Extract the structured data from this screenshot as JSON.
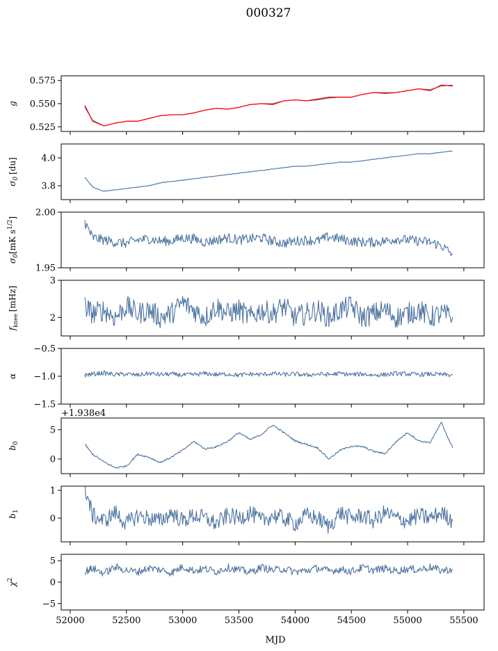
{
  "figure_title": "000327",
  "chart_data": [
    {
      "type": "line",
      "key": "g",
      "ylabel": "g",
      "ylim": [
        0.52,
        0.58
      ],
      "yticks": [
        0.525,
        0.55,
        0.575
      ],
      "ytick_labels": [
        "0.525",
        "0.550",
        "0.575"
      ],
      "series": [
        {
          "name": "g",
          "color": "#4c72a0",
          "x": [
            52130,
            52200,
            52300,
            52400,
            52500,
            52600,
            52700,
            52800,
            52900,
            53000,
            53100,
            53200,
            53300,
            53400,
            53500,
            53600,
            53700,
            53800,
            53900,
            54000,
            54100,
            54200,
            54300,
            54400,
            54500,
            54600,
            54700,
            54800,
            54900,
            55000,
            55100,
            55200,
            55300,
            55400
          ],
          "y": [
            0.546,
            0.532,
            0.526,
            0.529,
            0.531,
            0.531,
            0.534,
            0.537,
            0.538,
            0.538,
            0.54,
            0.543,
            0.545,
            0.544,
            0.546,
            0.549,
            0.55,
            0.55,
            0.553,
            0.554,
            0.553,
            0.554,
            0.556,
            0.557,
            0.557,
            0.56,
            0.562,
            0.562,
            0.562,
            0.564,
            0.566,
            0.565,
            0.569,
            0.57
          ]
        },
        {
          "name": "g (red)",
          "color": "#ff0000",
          "x": [
            52130,
            52200,
            52300,
            52400,
            52500,
            52600,
            52700,
            52800,
            52900,
            53000,
            53100,
            53200,
            53300,
            53400,
            53500,
            53600,
            53700,
            53800,
            53900,
            54000,
            54100,
            54200,
            54300,
            54400,
            54500,
            54600,
            54700,
            54800,
            54900,
            55000,
            55100,
            55200,
            55300,
            55400
          ],
          "y": [
            0.548,
            0.531,
            0.526,
            0.529,
            0.531,
            0.531,
            0.534,
            0.537,
            0.538,
            0.538,
            0.54,
            0.543,
            0.545,
            0.544,
            0.546,
            0.549,
            0.55,
            0.549,
            0.553,
            0.554,
            0.553,
            0.555,
            0.557,
            0.557,
            0.557,
            0.56,
            0.562,
            0.561,
            0.562,
            0.564,
            0.566,
            0.564,
            0.57,
            0.569
          ]
        }
      ]
    },
    {
      "type": "line",
      "key": "sigma0",
      "ylabel": "σ0 [du]",
      "ylim": [
        3.7,
        4.1
      ],
      "yticks": [
        3.8,
        4.0
      ],
      "ytick_labels": [
        "3.8",
        "4.0"
      ],
      "series": [
        {
          "name": "σ0 [du]",
          "color": "#4c72a0",
          "x": [
            52130,
            52200,
            52300,
            52400,
            52500,
            52600,
            52700,
            52800,
            52900,
            53000,
            53100,
            53200,
            53300,
            53400,
            53500,
            53600,
            53700,
            53800,
            53900,
            54000,
            54100,
            54200,
            54300,
            54400,
            54500,
            54600,
            54700,
            54800,
            54900,
            55000,
            55100,
            55200,
            55300,
            55400
          ],
          "y": [
            3.86,
            3.79,
            3.76,
            3.77,
            3.78,
            3.79,
            3.8,
            3.82,
            3.83,
            3.84,
            3.85,
            3.86,
            3.87,
            3.88,
            3.89,
            3.9,
            3.91,
            3.92,
            3.93,
            3.94,
            3.94,
            3.95,
            3.96,
            3.97,
            3.97,
            3.98,
            3.99,
            4.0,
            4.01,
            4.02,
            4.03,
            4.03,
            4.04,
            4.05
          ]
        }
      ]
    },
    {
      "type": "line",
      "key": "sigma_mk",
      "ylabel": "σ0[mK s^1/2]",
      "ylim": [
        1.95,
        2.0
      ],
      "yticks": [
        1.95,
        2.0
      ],
      "ytick_labels": [
        "1.95",
        "2.00"
      ],
      "series": [
        {
          "name": "σ0 [mK s^1/2]",
          "color": "#4c72a0",
          "x": [
            52130,
            52200,
            52300,
            52400,
            52500,
            52600,
            52700,
            52800,
            52900,
            53000,
            53100,
            53200,
            53300,
            53400,
            53500,
            53600,
            53700,
            53800,
            53900,
            54000,
            54100,
            54200,
            54300,
            54400,
            54500,
            54600,
            54700,
            54800,
            54900,
            55000,
            55100,
            55200,
            55300,
            55400
          ],
          "y": [
            1.991,
            1.977,
            1.975,
            1.973,
            1.972,
            1.975,
            1.976,
            1.974,
            1.974,
            1.977,
            1.976,
            1.973,
            1.975,
            1.977,
            1.975,
            1.976,
            1.977,
            1.974,
            1.972,
            1.974,
            1.975,
            1.974,
            1.978,
            1.976,
            1.974,
            1.973,
            1.973,
            1.974,
            1.976,
            1.975,
            1.974,
            1.973,
            1.97,
            1.962
          ]
        }
      ]
    },
    {
      "type": "line",
      "key": "fknee",
      "ylabel": "fknee [mHz]",
      "ylim": [
        1.5,
        3.0
      ],
      "yticks": [
        2,
        3
      ],
      "ytick_labels": [
        "2",
        "3"
      ],
      "series": [
        {
          "name": "fknee [mHz]",
          "color": "#4c72a0",
          "x": [
            52130,
            52200,
            52300,
            52400,
            52500,
            52600,
            52700,
            52800,
            52900,
            53000,
            53100,
            53200,
            53300,
            53400,
            53500,
            53600,
            53700,
            53800,
            53900,
            54000,
            54100,
            54200,
            54300,
            54400,
            54500,
            54600,
            54700,
            54800,
            54900,
            55000,
            55100,
            55200,
            55300,
            55400
          ],
          "y": [
            2.3,
            2.1,
            2.2,
            2.0,
            2.3,
            2.1,
            2.2,
            2.0,
            2.1,
            2.4,
            2.2,
            2.0,
            2.3,
            2.1,
            2.2,
            2.0,
            2.2,
            2.1,
            2.3,
            2.0,
            2.1,
            2.2,
            2.0,
            2.2,
            2.3,
            2.0,
            2.1,
            2.2,
            2.0,
            2.1,
            2.2,
            2.0,
            2.1,
            2.0
          ]
        }
      ]
    },
    {
      "type": "line",
      "key": "alpha",
      "ylabel": "α",
      "ylim": [
        -1.5,
        -0.5
      ],
      "yticks": [
        -1.5,
        -1.0,
        -0.5
      ],
      "ytick_labels": [
        "−1.5",
        "−1.0",
        "−0.5"
      ],
      "series": [
        {
          "name": "α",
          "color": "#4c72a0",
          "x": [
            52130,
            52200,
            52300,
            52400,
            52500,
            52600,
            52700,
            52800,
            52900,
            53000,
            53100,
            53200,
            53300,
            53400,
            53500,
            53600,
            53700,
            53800,
            53900,
            54000,
            54100,
            54200,
            54300,
            54400,
            54500,
            54600,
            54700,
            54800,
            54900,
            55000,
            55100,
            55200,
            55300,
            55400
          ],
          "y": [
            -0.98,
            -0.96,
            -0.94,
            -0.97,
            -0.96,
            -0.98,
            -0.95,
            -0.97,
            -0.96,
            -0.98,
            -0.97,
            -0.95,
            -0.97,
            -0.96,
            -0.98,
            -0.96,
            -0.97,
            -0.95,
            -0.97,
            -0.96,
            -0.98,
            -0.96,
            -0.97,
            -0.95,
            -0.97,
            -0.96,
            -0.98,
            -0.97,
            -0.95,
            -0.96,
            -0.97,
            -0.96,
            -0.97,
            -0.98
          ]
        }
      ]
    },
    {
      "type": "line",
      "key": "b0",
      "ylabel": "b0",
      "offset_text": "+1.938e4",
      "ylim": [
        -2.5,
        7.0
      ],
      "yticks": [
        0,
        5
      ],
      "ytick_labels": [
        "0",
        "5"
      ],
      "series": [
        {
          "name": "b0",
          "color": "#4c72a0",
          "x": [
            52130,
            52200,
            52300,
            52400,
            52500,
            52600,
            52700,
            52800,
            52900,
            53000,
            53100,
            53200,
            53300,
            53400,
            53500,
            53600,
            53700,
            53800,
            53900,
            54000,
            54100,
            54200,
            54300,
            54400,
            54500,
            54600,
            54700,
            54800,
            54900,
            55000,
            55100,
            55200,
            55300,
            55400
          ],
          "y": [
            2.5,
            0.8,
            -0.5,
            -1.5,
            -1.2,
            0.8,
            0.3,
            -0.6,
            0.3,
            1.5,
            3.0,
            1.7,
            2.1,
            3.0,
            4.5,
            3.3,
            4.2,
            5.8,
            4.5,
            3.1,
            2.5,
            1.9,
            0.0,
            1.5,
            2.2,
            2.1,
            1.3,
            0.9,
            3.0,
            4.5,
            3.1,
            2.8,
            6.2,
            1.9
          ]
        }
      ]
    },
    {
      "type": "line",
      "key": "b1",
      "ylabel": "b1",
      "ylim": [
        -0.85,
        1.15
      ],
      "yticks": [
        0,
        1
      ],
      "ytick_labels": [
        "0",
        "1"
      ],
      "series": [
        {
          "name": "b1",
          "color": "#4c72a0",
          "x": [
            52130,
            52200,
            52300,
            52400,
            52500,
            52600,
            52700,
            52800,
            52900,
            53000,
            53100,
            53200,
            53300,
            53400,
            53500,
            53600,
            53700,
            53800,
            53900,
            54000,
            54100,
            54200,
            54300,
            54400,
            54500,
            54600,
            54700,
            54800,
            54900,
            55000,
            55100,
            55200,
            55300,
            55400
          ],
          "y": [
            1.1,
            0.1,
            -0.1,
            0.2,
            -0.2,
            0.1,
            0.0,
            -0.1,
            0.2,
            -0.1,
            0.1,
            0.0,
            -0.2,
            0.1,
            0.0,
            0.2,
            -0.1,
            0.1,
            0.0,
            -0.2,
            0.1,
            0.0,
            -0.3,
            0.2,
            0.0,
            0.1,
            -0.1,
            0.2,
            0.0,
            -0.1,
            0.1,
            0.0,
            0.2,
            -0.1
          ]
        }
      ]
    },
    {
      "type": "line",
      "key": "chi2",
      "ylabel": "χ²",
      "xlabel": "MJD",
      "ylim": [
        -6.5,
        6.5
      ],
      "yticks": [
        -5,
        0,
        5
      ],
      "ytick_labels": [
        "−5",
        "0",
        "5"
      ],
      "series": [
        {
          "name": "χ²",
          "color": "#4c72a0",
          "x": [
            52130,
            52200,
            52300,
            52400,
            52500,
            52600,
            52700,
            52800,
            52900,
            53000,
            53100,
            53200,
            53300,
            53400,
            53500,
            53600,
            53700,
            53800,
            53900,
            54000,
            54100,
            54200,
            54300,
            54400,
            54500,
            54600,
            54700,
            54800,
            54900,
            55000,
            55100,
            55200,
            55300,
            55400
          ],
          "y": [
            2.5,
            3.2,
            2.1,
            3.5,
            2.8,
            2.4,
            3.3,
            2.9,
            2.2,
            3.6,
            2.7,
            3.1,
            2.5,
            3.4,
            2.9,
            2.3,
            3.5,
            2.8,
            3.1,
            2.4,
            2.7,
            3.3,
            2.6,
            3.0,
            2.5,
            3.4,
            2.8,
            3.2,
            2.6,
            3.1,
            2.9,
            3.5,
            2.7,
            3.0
          ]
        }
      ]
    }
  ],
  "x_axis": {
    "label": "MJD",
    "xlim": [
      51920,
      55680
    ],
    "ticks": [
      52000,
      52500,
      53000,
      53500,
      54000,
      54500,
      55000,
      55500
    ],
    "tick_labels": [
      "52000",
      "52500",
      "53000",
      "53500",
      "54000",
      "54500",
      "55000",
      "55500"
    ]
  },
  "ylabel_text": {
    "g": "g",
    "sigma0": "σ",
    "sigma0_sub": "0",
    "sigma0_unit": "[du]",
    "sigma_mk": "σ",
    "sigma_mk_sub": "0",
    "sigma_mk_unit": "[mK s",
    "sigma_mk_sup": "1/2",
    "sigma_mk_close": "]",
    "fknee": "f",
    "fknee_sub": "knee",
    "fknee_unit": "[mHz]",
    "alpha": "α",
    "b0": "b",
    "b0_sub": "0",
    "b1": "b",
    "b1_sub": "1",
    "chi": "χ",
    "chi_sup": "2"
  }
}
